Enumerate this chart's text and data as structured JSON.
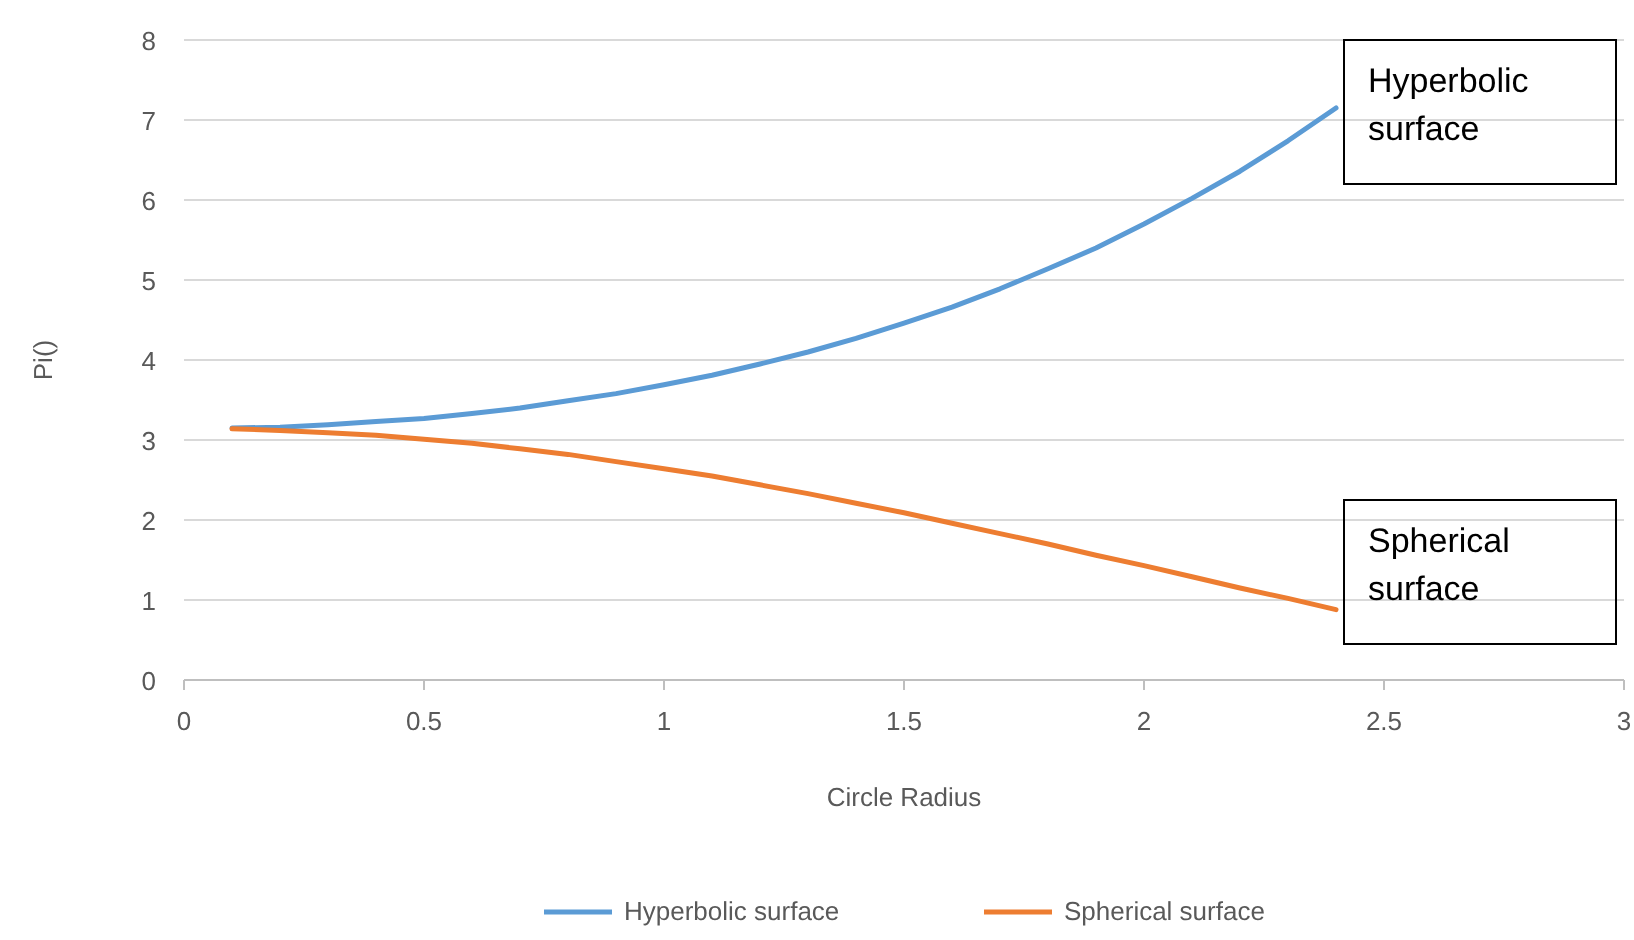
{
  "chart_data": {
    "type": "line",
    "xlabel": "Circle Radius",
    "ylabel": "Pi()",
    "x": [
      0.1,
      0.2,
      0.3,
      0.4,
      0.5,
      0.6,
      0.7,
      0.8,
      0.9,
      1.0,
      1.1,
      1.2,
      1.3,
      1.4,
      1.5,
      1.6,
      1.7,
      1.8,
      1.9,
      2.0,
      2.1,
      2.2,
      2.3,
      2.4
    ],
    "series": [
      {
        "name": "Hyperbolic surface",
        "color": "#5b9bd5",
        "values": [
          3.15,
          3.16,
          3.19,
          3.23,
          3.27,
          3.33,
          3.4,
          3.49,
          3.58,
          3.69,
          3.81,
          3.95,
          4.1,
          4.27,
          4.46,
          4.66,
          4.89,
          5.14,
          5.4,
          5.7,
          6.02,
          6.36,
          6.74,
          7.15
        ]
      },
      {
        "name": "Spherical surface",
        "color": "#ed7d31",
        "values": [
          3.14,
          3.12,
          3.09,
          3.06,
          3.01,
          2.96,
          2.89,
          2.82,
          2.73,
          2.64,
          2.55,
          2.44,
          2.33,
          2.21,
          2.09,
          1.96,
          1.83,
          1.7,
          1.56,
          1.43,
          1.29,
          1.15,
          1.02,
          0.88
        ]
      }
    ],
    "xlim": [
      0,
      3
    ],
    "xticks": [
      0,
      0.5,
      1,
      1.5,
      2,
      2.5,
      3
    ],
    "ylim": [
      0,
      8
    ],
    "yticks": [
      0,
      1,
      2,
      3,
      4,
      5,
      6,
      7,
      8
    ],
    "grid": "y",
    "legend": "bottom",
    "marker": "none",
    "line_style": "solid",
    "annotations": [
      {
        "text": "Hyperbolic surface",
        "x": 2.4,
        "y": 7.15
      },
      {
        "text": "Spherical surface",
        "x": 2.4,
        "y": 0.88
      }
    ]
  }
}
